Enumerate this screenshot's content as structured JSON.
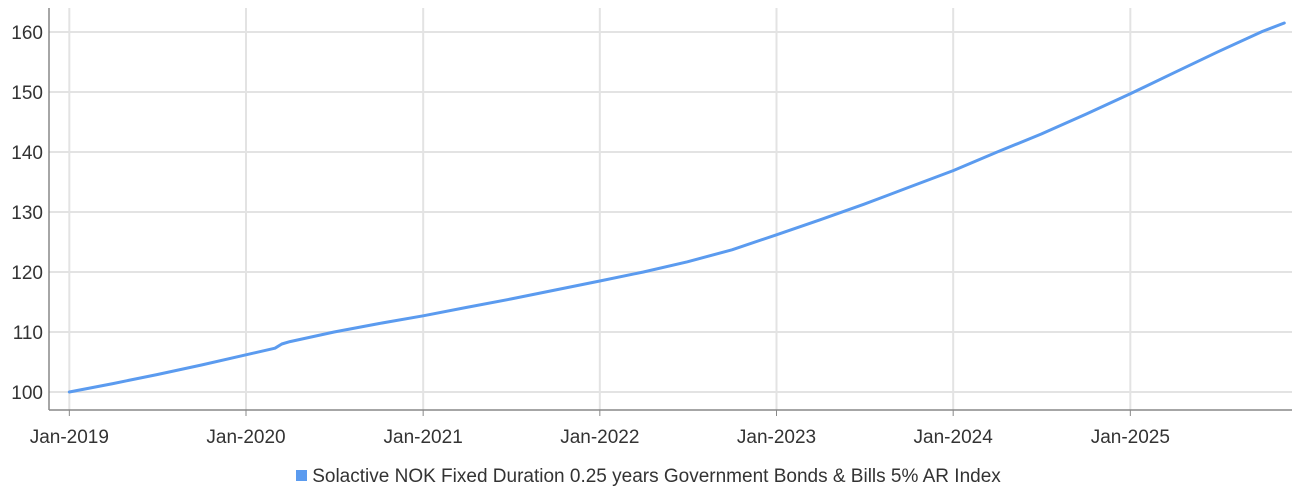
{
  "chart_data": {
    "type": "line",
    "title": "",
    "xlabel": "",
    "ylabel": "",
    "x_tick_labels": [
      "Jan-2019",
      "Jan-2020",
      "Jan-2021",
      "Jan-2022",
      "Jan-2023",
      "Jan-2024",
      "Jan-2025"
    ],
    "y_ticks": [
      100,
      110,
      120,
      130,
      140,
      150,
      160
    ],
    "ylim": [
      97,
      164
    ],
    "xlim": [
      "2018-11-20",
      "2025-12-01"
    ],
    "grid": true,
    "legend_position": "bottom-center",
    "colors": {
      "series": "#5b9bef",
      "grid": "#e3e3e3",
      "axis": "#888888"
    },
    "series": [
      {
        "name": "Solactive NOK Fixed Duration 0.25 years Government Bonds & Bills 5% AR Index",
        "points": [
          [
            "2019-01-01",
            100.0
          ],
          [
            "2019-04-01",
            101.4
          ],
          [
            "2019-07-01",
            102.9
          ],
          [
            "2019-10-01",
            104.5
          ],
          [
            "2020-01-01",
            106.2
          ],
          [
            "2020-03-01",
            107.3
          ],
          [
            "2020-03-15",
            108.0
          ],
          [
            "2020-04-01",
            108.4
          ],
          [
            "2020-07-01",
            110.0
          ],
          [
            "2020-10-01",
            111.4
          ],
          [
            "2021-01-01",
            112.7
          ],
          [
            "2021-04-01",
            114.1
          ],
          [
            "2021-07-01",
            115.5
          ],
          [
            "2021-10-01",
            117.0
          ],
          [
            "2022-01-01",
            118.5
          ],
          [
            "2022-04-01",
            120.0
          ],
          [
            "2022-07-01",
            121.7
          ],
          [
            "2022-10-01",
            123.7
          ],
          [
            "2023-01-01",
            126.2
          ],
          [
            "2023-04-01",
            128.7
          ],
          [
            "2023-07-01",
            131.3
          ],
          [
            "2023-10-01",
            134.1
          ],
          [
            "2024-01-01",
            136.9
          ],
          [
            "2024-04-01",
            140.0
          ],
          [
            "2024-07-01",
            143.0
          ],
          [
            "2024-10-01",
            146.3
          ],
          [
            "2025-01-01",
            149.7
          ],
          [
            "2025-04-01",
            153.2
          ],
          [
            "2025-07-01",
            156.7
          ],
          [
            "2025-10-01",
            160.1
          ],
          [
            "2025-11-15",
            161.5
          ]
        ]
      }
    ]
  },
  "legend": {
    "label": "Solactive NOK Fixed Duration 0.25 years Government Bonds & Bills 5% AR Index"
  }
}
